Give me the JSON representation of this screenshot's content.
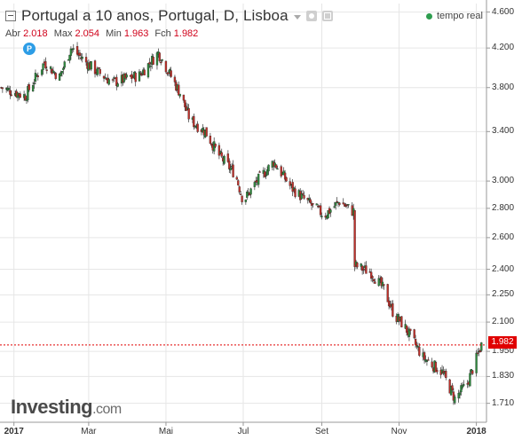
{
  "header": {
    "title": "Portugal a 10 anos, Portugal, D, Lisboa",
    "realtime_label": "tempo real"
  },
  "ohlc": {
    "open_label": "Abr",
    "open": "2.018",
    "high_label": "Max",
    "high": "2.054",
    "low_label": "Min",
    "low": "1.963",
    "close_label": "Fch",
    "close": "1.982"
  },
  "marker_label": "P",
  "logo": {
    "name": "Investing",
    "suffix": ".com"
  },
  "colors": {
    "up": "#2e8b3e",
    "down": "#c0302a",
    "price_line": "#e00000",
    "grid": "#e6e6e6"
  },
  "chart_data": {
    "type": "candlestick",
    "title": "Portugal a 10 anos, Portugal, D, Lisboa",
    "xlabel": "",
    "ylabel": "",
    "scale": "log",
    "ylim": [
      1.63,
      4.7
    ],
    "grid": true,
    "current_price": 1.982,
    "y_ticks": [
      4.6,
      4.2,
      3.8,
      3.4,
      3.0,
      2.8,
      2.6,
      2.4,
      2.25,
      2.1,
      1.95,
      1.83,
      1.71
    ],
    "y_tick_labels": [
      "4.600",
      "4.200",
      "3.800",
      "3.400",
      "3.000",
      "2.800",
      "2.600",
      "2.400",
      "2.250",
      "2.100",
      "1.950",
      "1.830",
      "1.710"
    ],
    "x_ticks": [
      {
        "label": "2017",
        "date": "2017-01-01",
        "bold": true
      },
      {
        "label": "Mar",
        "date": "2017-03-01",
        "bold": false
      },
      {
        "label": "Mai",
        "date": "2017-05-01",
        "bold": false
      },
      {
        "label": "Jul",
        "date": "2017-07-01",
        "bold": false
      },
      {
        "label": "Set",
        "date": "2017-09-01",
        "bold": false
      },
      {
        "label": "Nov",
        "date": "2017-11-01",
        "bold": false
      },
      {
        "label": "2018",
        "date": "2018-01-01",
        "bold": true
      }
    ],
    "x_range": [
      "2016-12-21",
      "2018-01-09"
    ],
    "series": [
      {
        "date": "2016-12-22",
        "close": 3.8
      },
      {
        "date": "2017-01-10",
        "close": 3.72
      },
      {
        "date": "2017-01-25",
        "close": 4.05
      },
      {
        "date": "2017-02-06",
        "close": 3.9
      },
      {
        "date": "2017-02-15",
        "close": 4.2
      },
      {
        "date": "2017-03-05",
        "close": 3.98
      },
      {
        "date": "2017-03-20",
        "close": 3.85
      },
      {
        "date": "2017-04-10",
        "close": 3.92
      },
      {
        "date": "2017-04-25",
        "close": 4.15
      },
      {
        "date": "2017-05-12",
        "close": 3.75
      },
      {
        "date": "2017-05-20",
        "close": 3.5
      },
      {
        "date": "2017-06-01",
        "close": 3.4
      },
      {
        "date": "2017-06-12",
        "close": 3.2
      },
      {
        "date": "2017-06-25",
        "close": 3.05
      },
      {
        "date": "2017-07-01",
        "close": 2.85
      },
      {
        "date": "2017-07-12",
        "close": 3.0
      },
      {
        "date": "2017-07-25",
        "close": 3.15
      },
      {
        "date": "2017-08-08",
        "close": 2.95
      },
      {
        "date": "2017-08-20",
        "close": 2.85
      },
      {
        "date": "2017-09-03",
        "close": 2.75
      },
      {
        "date": "2017-09-15",
        "close": 2.85
      },
      {
        "date": "2017-09-25",
        "close": 2.78
      },
      {
        "date": "2017-09-28",
        "close": 2.42
      },
      {
        "date": "2017-10-10",
        "close": 2.38
      },
      {
        "date": "2017-10-20",
        "close": 2.28
      },
      {
        "date": "2017-10-28",
        "close": 2.14
      },
      {
        "date": "2017-11-05",
        "close": 2.08
      },
      {
        "date": "2017-11-20",
        "close": 1.92
      },
      {
        "date": "2017-12-05",
        "close": 1.85
      },
      {
        "date": "2017-12-15",
        "close": 1.73
      },
      {
        "date": "2017-12-25",
        "close": 1.8
      },
      {
        "date": "2018-01-05",
        "close": 1.982
      }
    ]
  }
}
